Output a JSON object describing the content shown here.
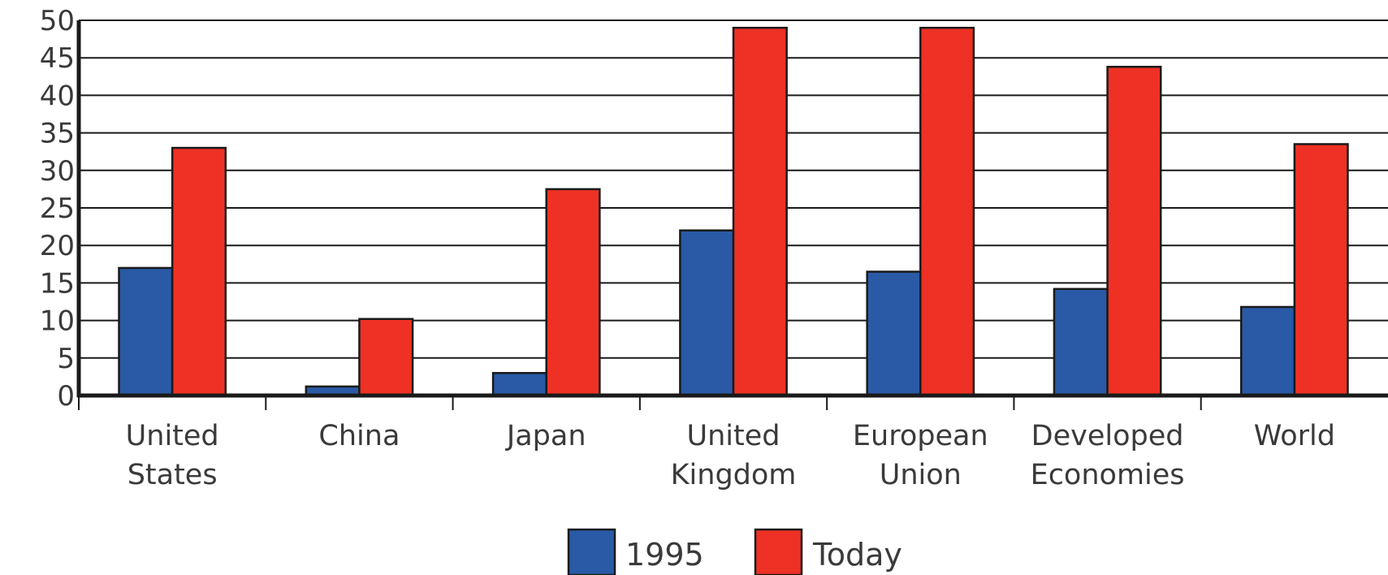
{
  "chart_data": {
    "type": "bar",
    "title": "",
    "xlabel": "",
    "ylabel": "",
    "ylim": [
      0,
      50
    ],
    "yticks": [
      0,
      5,
      10,
      15,
      20,
      25,
      30,
      35,
      40,
      45,
      50
    ],
    "grid": true,
    "legend_position": "bottom-center",
    "categories": [
      [
        "United",
        "States"
      ],
      [
        "China"
      ],
      [
        "Japan"
      ],
      [
        "United",
        "Kingdom"
      ],
      [
        "European",
        "Union"
      ],
      [
        "Developed",
        "Economies"
      ],
      [
        "World"
      ]
    ],
    "series": [
      {
        "name": "1995",
        "color": "#2a5aa6",
        "values": [
          17,
          1.2,
          3,
          22,
          16.5,
          14.2,
          11.8
        ]
      },
      {
        "name": "Today",
        "color": "#ee3124",
        "values": [
          33,
          10.2,
          27.5,
          49,
          49,
          43.8,
          33.5
        ]
      }
    ]
  }
}
